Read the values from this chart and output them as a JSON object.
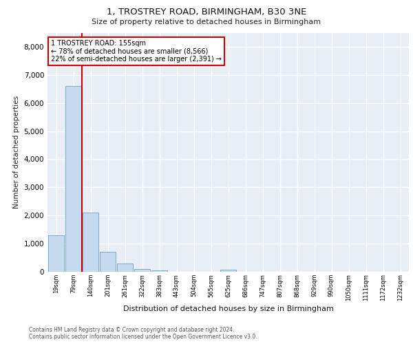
{
  "title_line1": "1, TROSTREY ROAD, BIRMINGHAM, B30 3NE",
  "title_line2": "Size of property relative to detached houses in Birmingham",
  "xlabel": "Distribution of detached houses by size in Birmingham",
  "ylabel": "Number of detached properties",
  "categories": [
    "19sqm",
    "79sqm",
    "140sqm",
    "201sqm",
    "261sqm",
    "322sqm",
    "383sqm",
    "443sqm",
    "504sqm",
    "565sqm",
    "625sqm",
    "686sqm",
    "747sqm",
    "807sqm",
    "868sqm",
    "929sqm",
    "990sqm",
    "1050sqm",
    "1111sqm",
    "1172sqm",
    "1232sqm"
  ],
  "values": [
    1300,
    6600,
    2100,
    700,
    290,
    110,
    60,
    0,
    0,
    0,
    70,
    0,
    0,
    0,
    0,
    0,
    0,
    0,
    0,
    0,
    0
  ],
  "bar_color": "#c5d9ef",
  "bar_edge_color": "#7aabcc",
  "vline_x": 1.5,
  "line_color": "#cc0000",
  "annotation_text": "1 TROSTREY ROAD: 155sqm\n← 78% of detached houses are smaller (8,566)\n22% of semi-detached houses are larger (2,391) →",
  "annotation_box_color": "#ffffff",
  "annotation_box_edge": "#cc0000",
  "ylim": [
    0,
    8500
  ],
  "yticks": [
    0,
    1000,
    2000,
    3000,
    4000,
    5000,
    6000,
    7000,
    8000
  ],
  "bg_color": "#e8eef6",
  "grid_color": "#ffffff",
  "footer_line1": "Contains HM Land Registry data © Crown copyright and database right 2024.",
  "footer_line2": "Contains public sector information licensed under the Open Government Licence v3.0."
}
